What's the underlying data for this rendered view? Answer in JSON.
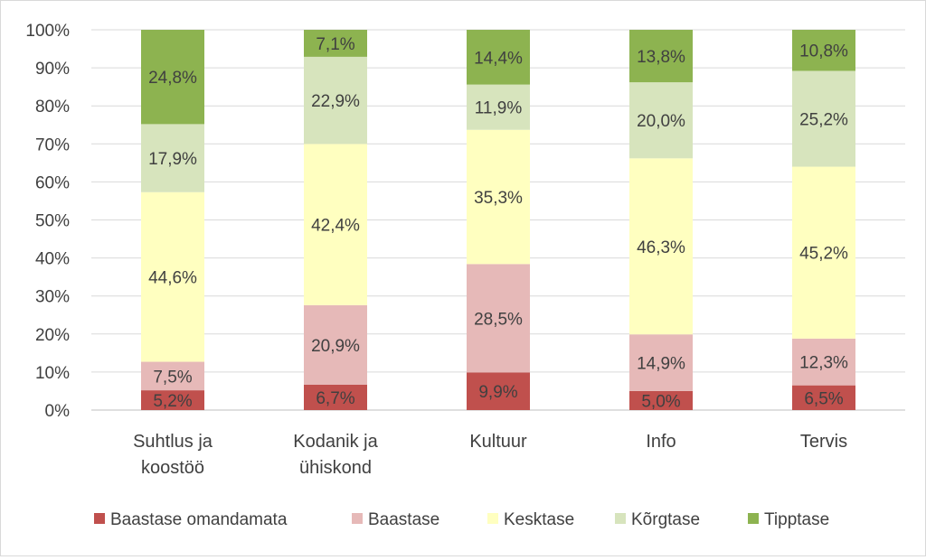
{
  "chart_data": {
    "type": "bar",
    "stacked": true,
    "categories": [
      "Suhtlus ja koostöö",
      "Kodanik ja ühiskond",
      "Kultuur",
      "Info",
      "Tervis"
    ],
    "category_lines": [
      [
        "Suhtlus ja",
        "koostöö"
      ],
      [
        "Kodanik ja",
        "ühiskond"
      ],
      [
        "Kultuur"
      ],
      [
        "Info"
      ],
      [
        "Tervis"
      ]
    ],
    "series": [
      {
        "name": "Baastase omandamata",
        "color": "#c0504d",
        "values": [
          5.2,
          6.7,
          9.9,
          5.0,
          6.5
        ],
        "labels": [
          "5,2%",
          "6,7%",
          "9,9%",
          "5,0%",
          "6,5%"
        ]
      },
      {
        "name": "Baastase",
        "color": "#e6b9b8",
        "values": [
          7.5,
          20.9,
          28.5,
          14.9,
          12.3
        ],
        "labels": [
          "7,5%",
          "20,9%",
          "28,5%",
          "14,9%",
          "12,3%"
        ]
      },
      {
        "name": "Kesktase",
        "color": "#ffffc0",
        "values": [
          44.6,
          42.4,
          35.3,
          46.3,
          45.2
        ],
        "labels": [
          "44,6%",
          "42,4%",
          "35,3%",
          "46,3%",
          "45,2%"
        ]
      },
      {
        "name": "Kõrgtase",
        "color": "#d7e4bd",
        "values": [
          17.9,
          22.9,
          11.9,
          20.0,
          25.2
        ],
        "labels": [
          "17,9%",
          "22,9%",
          "11,9%",
          "20,0%",
          "25,2%"
        ]
      },
      {
        "name": "Tipptase",
        "color": "#8db350",
        "values": [
          24.8,
          7.1,
          14.4,
          13.8,
          10.8
        ],
        "labels": [
          "24,8%",
          "7,1%",
          "14,4%",
          "13,8%",
          "10,8%"
        ]
      }
    ],
    "ylim": [
      0,
      100
    ],
    "yticks": [
      "0%",
      "10%",
      "20%",
      "30%",
      "40%",
      "50%",
      "60%",
      "70%",
      "80%",
      "90%",
      "100%"
    ],
    "grid": true,
    "legend_position": "bottom"
  }
}
